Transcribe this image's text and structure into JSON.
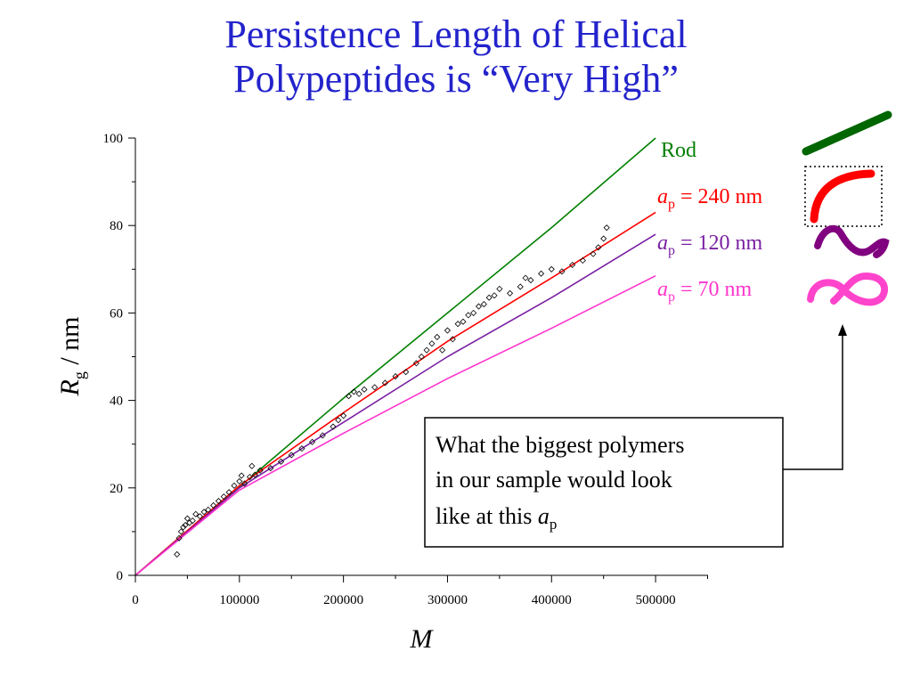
{
  "title": {
    "line1": "Persistence Length of Helical",
    "line2": "Polypeptides is “Very High”"
  },
  "callout": {
    "line1": "What the biggest polymers",
    "line2": "in our sample would look",
    "line3_prefix": "like at this ",
    "line3_symbol": "a",
    "line3_sub": "p"
  },
  "colors": {
    "title": "#2323cc",
    "rod": "#008000",
    "ap240": "#ff0000",
    "ap120": "#7a1fa2",
    "ap70": "#ff33cc",
    "conf120": "#800080",
    "conf70": "#ff44cc"
  },
  "chart_data": {
    "type": "scatter",
    "xlabel": "M",
    "ylabel_symbol": "R",
    "ylabel_sub": "g",
    "ylabel_unit": " / nm",
    "xlim": [
      0,
      550000
    ],
    "ylim": [
      0,
      100
    ],
    "xticks": [
      0,
      100000,
      200000,
      300000,
      400000,
      500000
    ],
    "xtick_labels": [
      "0",
      "100000",
      "200000",
      "300000",
      "400000",
      "500000"
    ],
    "yticks": [
      0,
      20,
      40,
      60,
      80,
      100
    ],
    "ytick_labels": [
      "0",
      "20",
      "40",
      "60",
      "80",
      "100"
    ],
    "lines": [
      {
        "name": "Rod",
        "label_text": "Rod",
        "color": "#008000",
        "x": [
          0,
          100000,
          200000,
          300000,
          400000,
          500000
        ],
        "y": [
          0,
          20.2,
          40.5,
          60.0,
          79.5,
          100
        ]
      },
      {
        "name": "ap = 240 nm",
        "label_symbol": "a",
        "label_sub": "p",
        "label_value": " = 240 nm",
        "color": "#ff0000",
        "x": [
          0,
          100000,
          200000,
          300000,
          400000,
          500000
        ],
        "y": [
          0,
          20.5,
          37.2,
          53.5,
          68.0,
          83.0
        ]
      },
      {
        "name": "ap = 120 nm",
        "label_symbol": "a",
        "label_sub": "p",
        "label_value": " = 120 nm",
        "color": "#7a1fa2",
        "x": [
          0,
          100000,
          200000,
          300000,
          400000,
          500000
        ],
        "y": [
          0,
          20.0,
          35.0,
          50.0,
          63.5,
          78.0
        ]
      },
      {
        "name": "ap = 70 nm",
        "label_symbol": "a",
        "label_sub": "p",
        "label_value": " = 70 nm",
        "color": "#ff33cc",
        "x": [
          0,
          100000,
          200000,
          300000,
          400000,
          500000
        ],
        "y": [
          0,
          19.5,
          32.5,
          45.0,
          56.5,
          68.5
        ]
      }
    ],
    "points": {
      "x": [
        40000,
        42000,
        44000,
        46000,
        48000,
        50000,
        52000,
        55000,
        58000,
        62000,
        66000,
        70000,
        75000,
        80000,
        85000,
        90000,
        95000,
        100000,
        102000,
        105000,
        110000,
        112000,
        115000,
        120000,
        130000,
        140000,
        150000,
        160000,
        170000,
        180000,
        190000,
        195000,
        200000,
        205000,
        210000,
        215000,
        220000,
        230000,
        240000,
        250000,
        260000,
        270000,
        275000,
        280000,
        285000,
        290000,
        295000,
        300000,
        305000,
        310000,
        315000,
        320000,
        325000,
        330000,
        335000,
        340000,
        345000,
        350000,
        360000,
        370000,
        375000,
        380000,
        390000,
        400000,
        410000,
        420000,
        430000,
        440000,
        445000,
        450000,
        453000
      ],
      "y": [
        4.8,
        8.5,
        10.0,
        11.0,
        11.5,
        13.0,
        12.0,
        12.5,
        14.0,
        13.5,
        14.5,
        15.0,
        16.0,
        17.0,
        18.0,
        19.0,
        20.5,
        21.5,
        22.8,
        21.0,
        22.5,
        25.0,
        23.0,
        24.0,
        24.5,
        26.0,
        27.5,
        29.0,
        30.5,
        32.0,
        34.0,
        35.5,
        36.5,
        41.0,
        42.0,
        41.5,
        42.5,
        43.0,
        44.0,
        45.5,
        46.5,
        48.5,
        50.0,
        51.5,
        53.0,
        54.5,
        51.5,
        56.0,
        54.0,
        57.5,
        58.0,
        59.5,
        60.0,
        61.5,
        62.0,
        63.5,
        64.0,
        65.5,
        64.5,
        66.0,
        68.0,
        67.5,
        69.0,
        70.0,
        69.5,
        71.0,
        72.0,
        73.5,
        75.0,
        77.0,
        79.5
      ]
    }
  }
}
